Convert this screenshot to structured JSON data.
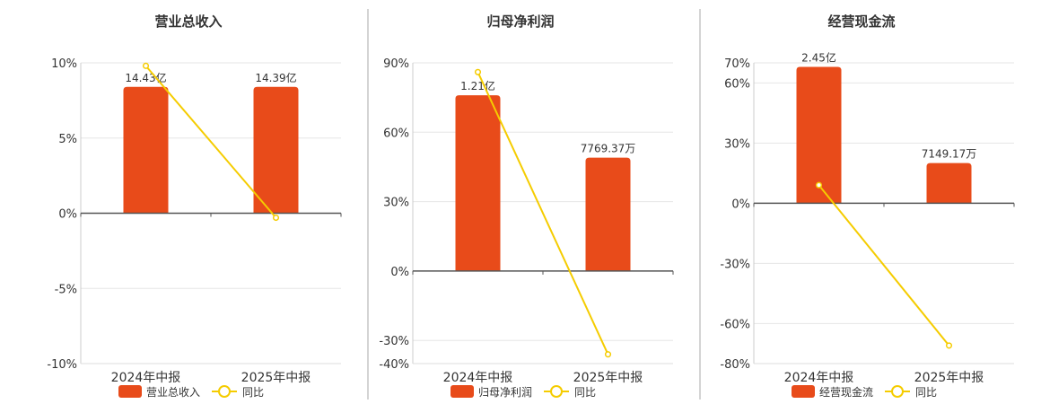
{
  "colors": {
    "bar": "#E84B1A",
    "line": "#F5CC00",
    "grid": "#E6E6E6",
    "axis": "#555555",
    "divider": "#AAAAAA",
    "text": "#333333"
  },
  "chart_data": [
    {
      "type": "bar",
      "title": "营业总收入",
      "categories": [
        "2024年中报",
        "2025年中报"
      ],
      "series": [
        {
          "name": "营业总收入",
          "type": "bar",
          "values": [
            8.4,
            8.4
          ],
          "labels": [
            "14.43亿",
            "14.39亿"
          ]
        },
        {
          "name": "同比",
          "type": "line",
          "values": [
            9.8,
            -0.3
          ]
        }
      ],
      "ylim": [
        -10,
        10
      ],
      "yticks": [
        -10,
        -5,
        0,
        5,
        10
      ],
      "ytick_labels": [
        "-10%",
        "-5%",
        "0%",
        "5%",
        "10%"
      ],
      "grid": true,
      "legend": "bottom"
    },
    {
      "type": "bar",
      "title": "归母净利润",
      "categories": [
        "2024年中报",
        "2025年中报"
      ],
      "series": [
        {
          "name": "归母净利润",
          "type": "bar",
          "values": [
            76,
            49
          ],
          "labels": [
            "1.21亿",
            "7769.37万"
          ]
        },
        {
          "name": "同比",
          "type": "line",
          "values": [
            86,
            -36
          ]
        }
      ],
      "ylim": [
        -40,
        90
      ],
      "yticks": [
        -40,
        -30,
        0,
        30,
        60,
        90
      ],
      "ytick_labels": [
        "-40%",
        "-30%",
        "0%",
        "30%",
        "60%",
        "90%"
      ],
      "grid": true,
      "legend": "bottom"
    },
    {
      "type": "bar",
      "title": "经营现金流",
      "categories": [
        "2024年中报",
        "2025年中报"
      ],
      "series": [
        {
          "name": "经营现金流",
          "type": "bar",
          "values": [
            68,
            20
          ],
          "labels": [
            "2.45亿",
            "7149.17万"
          ]
        },
        {
          "name": "同比",
          "type": "line",
          "values": [
            9,
            -71
          ]
        }
      ],
      "ylim": [
        -80,
        70
      ],
      "yticks": [
        -80,
        -60,
        -30,
        0,
        30,
        60,
        70
      ],
      "ytick_labels": [
        "-80%",
        "-60%",
        "-30%",
        "0%",
        "30%",
        "60%",
        "70%"
      ],
      "grid": true,
      "legend": "bottom"
    }
  ]
}
